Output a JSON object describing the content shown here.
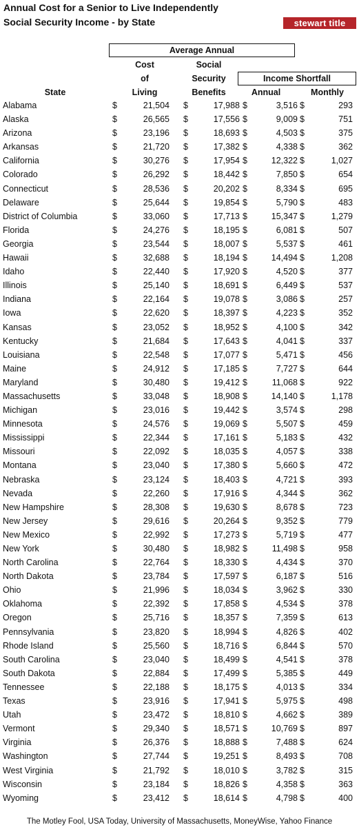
{
  "title_line1": "Annual Cost for a Senior to Live Independently",
  "title_line2": "Social Security Income - by State",
  "logo": "stewart title",
  "headers": {
    "average_annual": "Average Annual",
    "cost_lines": [
      "Cost",
      "of",
      "Living"
    ],
    "ss_lines": [
      "Social",
      "Security",
      "Benefits"
    ],
    "income_shortfall": "Income Shortfall",
    "state": "State",
    "annual": "Annual",
    "monthly": "Monthly"
  },
  "currency": "$",
  "rows": [
    [
      "Alabama",
      "21,504",
      "17,988",
      "3,516",
      "293"
    ],
    [
      "Alaska",
      "26,565",
      "17,556",
      "9,009",
      "751"
    ],
    [
      "Arizona",
      "23,196",
      "18,693",
      "4,503",
      "375"
    ],
    [
      "Arkansas",
      "21,720",
      "17,382",
      "4,338",
      "362"
    ],
    [
      "California",
      "30,276",
      "17,954",
      "12,322",
      "1,027"
    ],
    [
      "Colorado",
      "26,292",
      "18,442",
      "7,850",
      "654"
    ],
    [
      "Connecticut",
      "28,536",
      "20,202",
      "8,334",
      "695"
    ],
    [
      "Delaware",
      "25,644",
      "19,854",
      "5,790",
      "483"
    ],
    [
      "District of Columbia",
      "33,060",
      "17,713",
      "15,347",
      "1,279"
    ],
    [
      "Florida",
      "24,276",
      "18,195",
      "6,081",
      "507"
    ],
    [
      "Georgia",
      "23,544",
      "18,007",
      "5,537",
      "461"
    ],
    [
      "Hawaii",
      "32,688",
      "18,194",
      "14,494",
      "1,208"
    ],
    [
      "Idaho",
      "22,440",
      "17,920",
      "4,520",
      "377"
    ],
    [
      "Illinois",
      "25,140",
      "18,691",
      "6,449",
      "537"
    ],
    [
      "Indiana",
      "22,164",
      "19,078",
      "3,086",
      "257"
    ],
    [
      "Iowa",
      "22,620",
      "18,397",
      "4,223",
      "352"
    ],
    [
      "Kansas",
      "23,052",
      "18,952",
      "4,100",
      "342"
    ],
    [
      "Kentucky",
      "21,684",
      "17,643",
      "4,041",
      "337"
    ],
    [
      "Louisiana",
      "22,548",
      "17,077",
      "5,471",
      "456"
    ],
    [
      "Maine",
      "24,912",
      "17,185",
      "7,727",
      "644"
    ],
    [
      "Maryland",
      "30,480",
      "19,412",
      "11,068",
      "922"
    ],
    [
      "Massachusetts",
      "33,048",
      "18,908",
      "14,140",
      "1,178"
    ],
    [
      "Michigan",
      "23,016",
      "19,442",
      "3,574",
      "298"
    ],
    [
      "Minnesota",
      "24,576",
      "19,069",
      "5,507",
      "459"
    ],
    [
      "Mississippi",
      "22,344",
      "17,161",
      "5,183",
      "432"
    ],
    [
      "Missouri",
      "22,092",
      "18,035",
      "4,057",
      "338"
    ],
    [
      "Montana",
      "23,040",
      "17,380",
      "5,660",
      "472"
    ],
    [
      "Nebraska",
      "23,124",
      "18,403",
      "4,721",
      "393"
    ],
    [
      "Nevada",
      "22,260",
      "17,916",
      "4,344",
      "362"
    ],
    [
      "New Hampshire",
      "28,308",
      "19,630",
      "8,678",
      "723"
    ],
    [
      "New Jersey",
      "29,616",
      "20,264",
      "9,352",
      "779"
    ],
    [
      "New Mexico",
      "22,992",
      "17,273",
      "5,719",
      "477"
    ],
    [
      "New York",
      "30,480",
      "18,982",
      "11,498",
      "958"
    ],
    [
      "North Carolina",
      "22,764",
      "18,330",
      "4,434",
      "370"
    ],
    [
      "North Dakota",
      "23,784",
      "17,597",
      "6,187",
      "516"
    ],
    [
      "Ohio",
      "21,996",
      "18,034",
      "3,962",
      "330"
    ],
    [
      "Oklahoma",
      "22,392",
      "17,858",
      "4,534",
      "378"
    ],
    [
      "Oregon",
      "25,716",
      "18,357",
      "7,359",
      "613"
    ],
    [
      "Pennsylvania",
      "23,820",
      "18,994",
      "4,826",
      "402"
    ],
    [
      "Rhode Island",
      "25,560",
      "18,716",
      "6,844",
      "570"
    ],
    [
      "South Carolina",
      "23,040",
      "18,499",
      "4,541",
      "378"
    ],
    [
      "South Dakota",
      "22,884",
      "17,499",
      "5,385",
      "449"
    ],
    [
      "Tennessee",
      "22,188",
      "18,175",
      "4,013",
      "334"
    ],
    [
      "Texas",
      "23,916",
      "17,941",
      "5,975",
      "498"
    ],
    [
      "Utah",
      "23,472",
      "18,810",
      "4,662",
      "389"
    ],
    [
      "Vermont",
      "29,340",
      "18,571",
      "10,769",
      "897"
    ],
    [
      "Virginia",
      "26,376",
      "18,888",
      "7,488",
      "624"
    ],
    [
      "Washington",
      "27,744",
      "19,251",
      "8,493",
      "708"
    ],
    [
      "West Virginia",
      "21,792",
      "18,010",
      "3,782",
      "315"
    ],
    [
      "Wisconsin",
      "23,184",
      "18,826",
      "4,358",
      "363"
    ],
    [
      "Wyoming",
      "23,412",
      "18,614",
      "4,798",
      "400"
    ]
  ],
  "source": "The Motley Fool, USA Today, University of Massachusetts, MoneyWise, Yahoo Finance"
}
